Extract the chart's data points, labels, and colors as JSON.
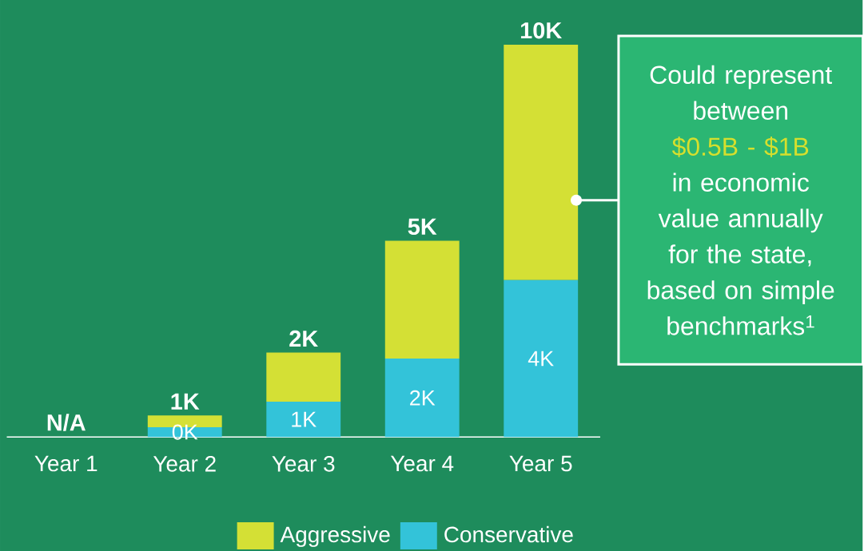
{
  "chart_data": {
    "type": "bar",
    "stacked": true,
    "categories": [
      "Year 1",
      "Year 2",
      "Year 3",
      "Year 4",
      "Year 5"
    ],
    "series": [
      {
        "name": "Conservative",
        "color": "#33c3d9",
        "values": [
          null,
          0.25,
          0.9,
          2,
          4
        ],
        "value_labels": [
          null,
          "0K",
          "1K",
          "2K",
          "4K"
        ]
      },
      {
        "name": "Aggressive",
        "color": "#d4e035",
        "values": [
          null,
          0.3,
          1.25,
          3,
          6
        ]
      }
    ],
    "totals": [
      "N/A",
      "1K",
      "2K",
      "5K",
      "10K"
    ],
    "legend": "bottom",
    "annotations": [
      "Could represent between",
      "$0.5B - $1B",
      "in economic value annually for the state, based on simple benchmarks$^{1}$"
    ]
  }
}
